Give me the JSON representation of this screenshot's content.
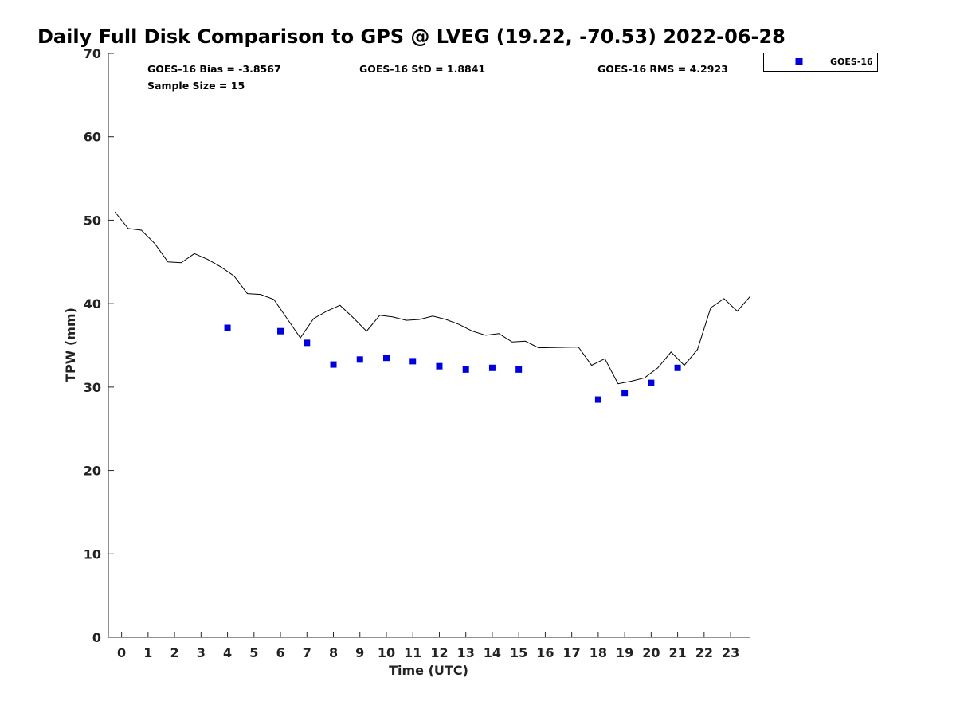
{
  "chart_data": {
    "type": "scatter",
    "title": "Daily Full Disk Comparison to GPS @ LVEG (19.22, -70.53) 2022-06-28",
    "xlabel": "Time (UTC)",
    "ylabel": "TPW (mm)",
    "xlim": [
      -0.5,
      23.75
    ],
    "ylim": [
      0,
      70
    ],
    "x_ticks": [
      0,
      1,
      2,
      3,
      4,
      5,
      6,
      7,
      8,
      9,
      10,
      11,
      12,
      13,
      14,
      15,
      16,
      17,
      18,
      19,
      20,
      21,
      22,
      23
    ],
    "y_ticks": [
      0,
      10,
      20,
      30,
      40,
      50,
      60,
      70
    ],
    "grid": false,
    "legend_position": "top-right, outside plot",
    "stats": {
      "bias": "GOES-16 Bias = -3.8567",
      "std": "GOES-16 StD = 1.8841",
      "rms": "GOES-16 RMS = 4.2923",
      "sample_size": "Sample Size = 15"
    },
    "series": [
      {
        "kind": "line",
        "color": "#000000",
        "x": [
          -0.25,
          0.25,
          0.75,
          1.25,
          1.75,
          2.25,
          2.75,
          3.25,
          3.75,
          4.25,
          4.75,
          5.25,
          5.75,
          6.25,
          6.75,
          7.25,
          7.75,
          8.25,
          8.75,
          9.25,
          9.75,
          10.25,
          10.75,
          11.25,
          11.75,
          12.25,
          12.75,
          13.25,
          13.75,
          14.25,
          14.75,
          15.25,
          15.75,
          17.25,
          17.75,
          18.25,
          18.75,
          19.25,
          19.75,
          20.25,
          20.75,
          21.25,
          21.75,
          22.25,
          22.75,
          23.25,
          23.75
        ],
        "y": [
          51.0,
          49.0,
          48.8,
          47.2,
          45.0,
          44.9,
          46.0,
          45.3,
          44.4,
          43.3,
          41.2,
          41.1,
          40.5,
          38.2,
          35.9,
          38.2,
          39.1,
          39.8,
          38.3,
          36.7,
          38.6,
          38.4,
          38.0,
          38.1,
          38.5,
          38.1,
          37.5,
          36.7,
          36.2,
          36.4,
          35.4,
          35.5,
          34.7,
          34.8,
          32.6,
          33.4,
          30.4,
          30.7,
          31.1,
          32.3,
          34.2,
          32.6,
          34.5,
          39.5,
          40.6,
          39.1,
          40.9
        ]
      },
      {
        "name": "GOES-16",
        "kind": "scatter",
        "color": "#0000dd",
        "marker": "square",
        "x": [
          4,
          6,
          7,
          8,
          9,
          10,
          11,
          12,
          13,
          14,
          15,
          18,
          19,
          20,
          21
        ],
        "y": [
          37.1,
          36.7,
          35.3,
          32.7,
          33.3,
          33.5,
          33.1,
          32.5,
          32.1,
          32.3,
          32.1,
          28.5,
          29.3,
          30.5,
          32.3
        ]
      }
    ]
  }
}
